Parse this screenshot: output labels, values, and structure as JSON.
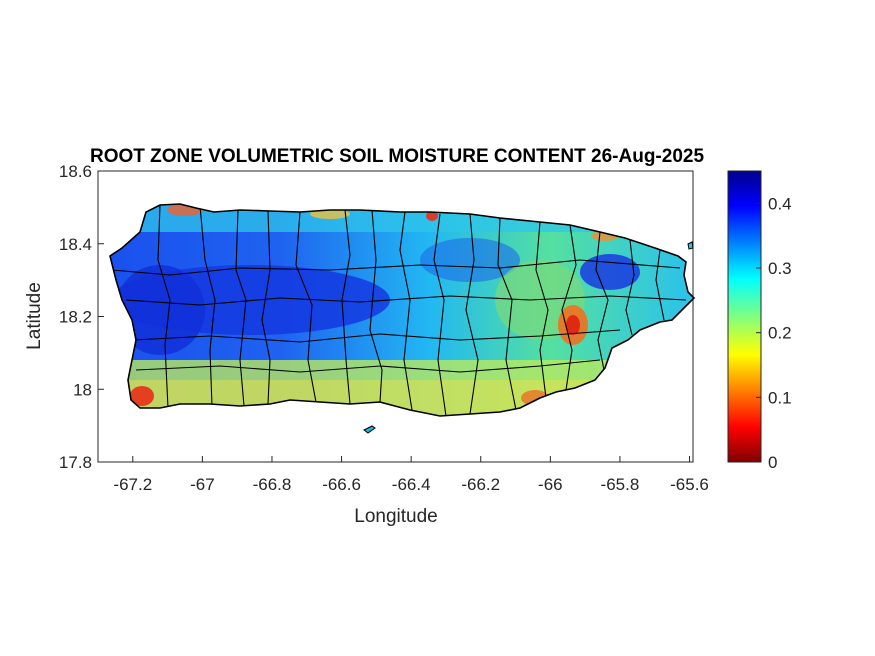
{
  "map": {
    "title": "ROOT ZONE VOLUMETRIC SOIL MOISTURE CONTENT 26-Aug-2025",
    "xlabel": "Longitude",
    "ylabel": "Latitude",
    "xticks": [
      "-67.2",
      "-67",
      "-66.8",
      "-66.6",
      "-66.4",
      "-66.2",
      "-66",
      "-65.8",
      "-65.6"
    ],
    "yticks": [
      "18.6",
      "18.4",
      "18.2",
      "18",
      "17.8"
    ],
    "xlim": [
      -67.3,
      -65.59
    ],
    "ylim": [
      17.8,
      18.6
    ],
    "colorbar": {
      "colormap": "jet",
      "range": [
        0,
        0.45
      ],
      "ticks": [
        "0",
        "0.1",
        "0.2",
        "0.3",
        "0.4"
      ]
    },
    "colors": {
      "land_wet": "#1030e0",
      "land_mid": "#20c8f0",
      "land_dry": "#f0e020",
      "very_dry": "#e02010",
      "border": "#000000"
    }
  }
}
